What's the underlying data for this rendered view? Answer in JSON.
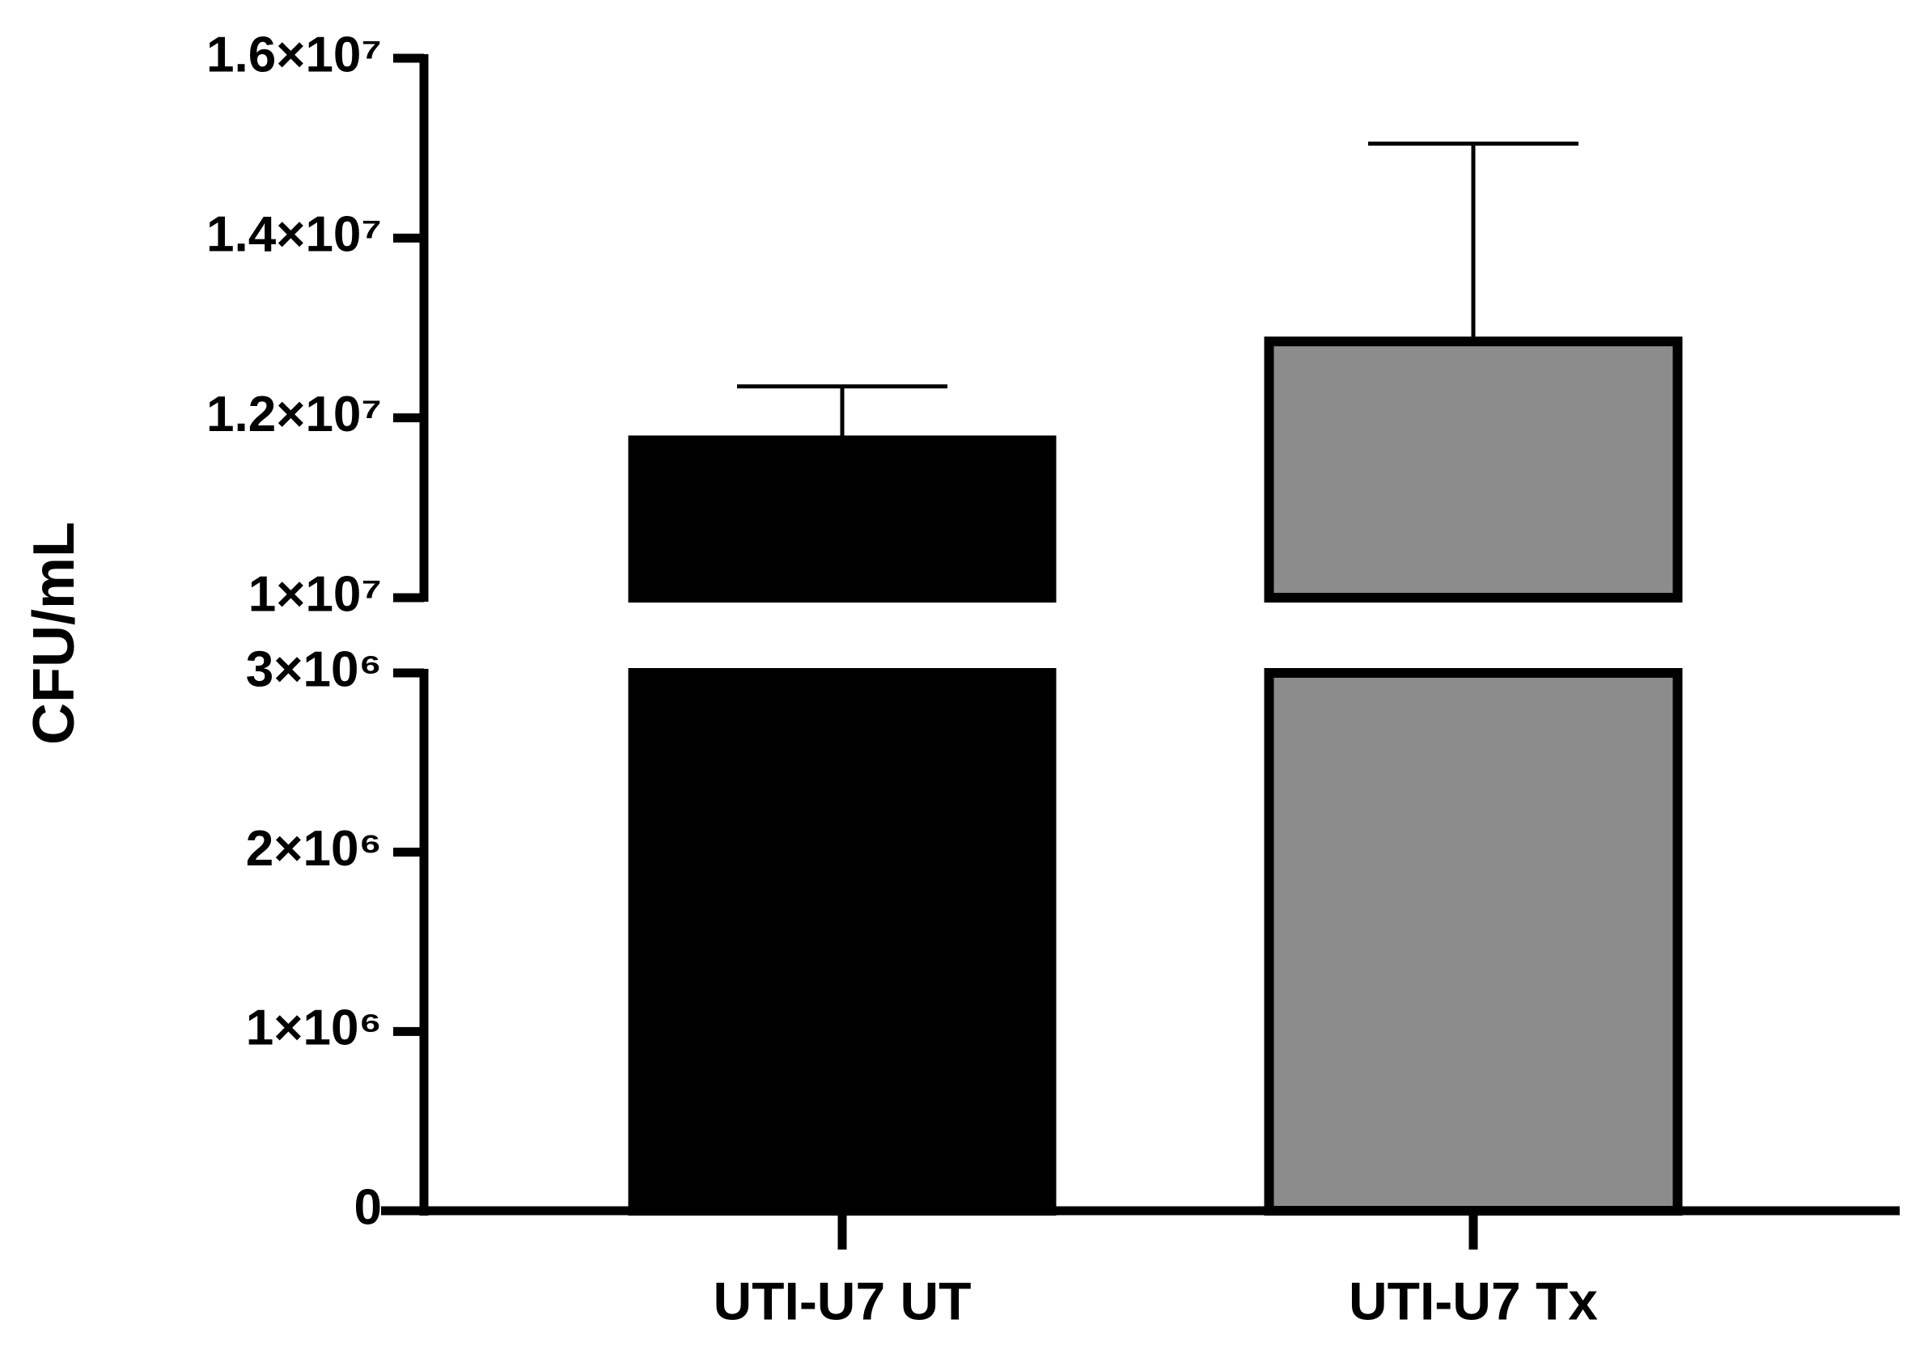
{
  "chart_data": {
    "type": "bar",
    "y_label": "CFU/mL",
    "categories": [
      "UTI-U7 UT",
      "UTI-U7 Tx"
    ],
    "values": [
      11750000,
      12850000
    ],
    "errors": [
      600000,
      2200000
    ],
    "colors": [
      "#000000",
      "#8c8c8c"
    ],
    "edge_color": "#000000",
    "y_segments": [
      {
        "ylim": [
          0,
          3000000
        ],
        "yticks": [
          0,
          {
            "value": 1000000,
            "label": "1×10⁶"
          },
          {
            "value": 2000000,
            "label": "2×10⁶"
          },
          {
            "value": 3000000,
            "label": "3×10⁶"
          }
        ]
      },
      {
        "ylim": [
          10000000,
          16000000
        ],
        "yticks": [
          {
            "value": 10000000,
            "label": "1×10⁷"
          },
          {
            "value": 12000000,
            "label": "1.2×10⁷"
          },
          {
            "value": 14000000,
            "label": "1.4×10⁷"
          },
          {
            "value": 16000000,
            "label": "1.6×10⁷"
          }
        ]
      }
    ]
  }
}
